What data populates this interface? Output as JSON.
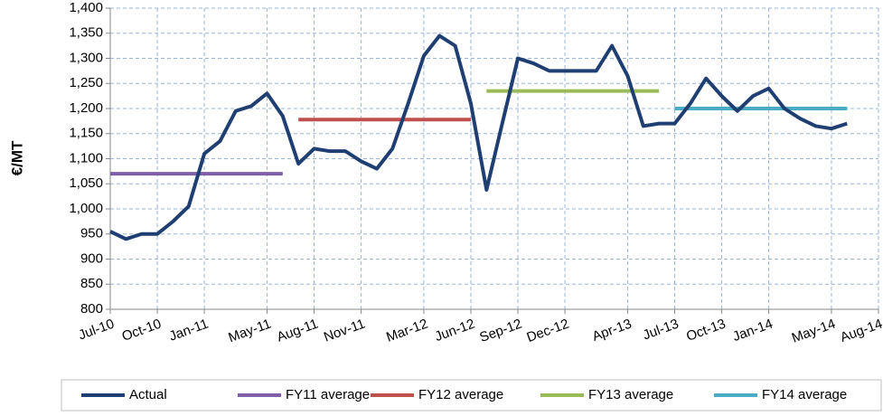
{
  "chart_data": {
    "type": "line",
    "y_label": "€/MT",
    "x": [
      "Jul-10",
      "Aug-10",
      "Sep-10",
      "Oct-10",
      "Nov-10",
      "Dec-10",
      "Jan-11",
      "Feb-11",
      "Mar-11",
      "Apr-11",
      "May-11",
      "Jun-11",
      "Jul-11",
      "Aug-11",
      "Sep-11",
      "Oct-11",
      "Nov-11",
      "Dec-11",
      "Jan-12",
      "Feb-12",
      "Mar-12",
      "Apr-12",
      "May-12",
      "Jun-12",
      "Jul-12",
      "Aug-12",
      "Sep-12",
      "Oct-12",
      "Nov-12",
      "Dec-12",
      "Jan-13",
      "Feb-13",
      "Mar-13",
      "Apr-13",
      "May-13",
      "Jun-13",
      "Jul-13",
      "Aug-13",
      "Sep-13",
      "Oct-13",
      "Nov-13",
      "Dec-13",
      "Jan-14",
      "Feb-14",
      "Mar-14",
      "Apr-14",
      "May-14",
      "Jun-14"
    ],
    "series": [
      {
        "name": "Actual",
        "color": "#1f3f73",
        "values": [
          955,
          940,
          950,
          950,
          975,
          1005,
          1110,
          1135,
          1195,
          1205,
          1230,
          1185,
          1090,
          1120,
          1115,
          1115,
          1095,
          1080,
          1120,
          1210,
          1305,
          1345,
          1325,
          1210,
          1038,
          1170,
          1300,
          1290,
          1275,
          1275,
          1275,
          1275,
          1325,
          1265,
          1165,
          1170,
          1170,
          1210,
          1260,
          1225,
          1195,
          1225,
          1240,
          1200,
          1180,
          1165,
          1160,
          1170
        ]
      },
      {
        "name": "FY11 average",
        "color": "#7f5fa8",
        "x": [
          "Jul-10",
          "Jun-11"
        ],
        "values": [
          1070,
          1070
        ]
      },
      {
        "name": "FY12 average",
        "color": "#c0504d",
        "x": [
          "Jul-11",
          "Jun-12"
        ],
        "values": [
          1178,
          1178
        ]
      },
      {
        "name": "FY13 average",
        "color": "#9bbb59",
        "x": [
          "Jul-12",
          "Jun-13"
        ],
        "values": [
          1235,
          1235
        ]
      },
      {
        "name": "FY14 average",
        "color": "#4bacc6",
        "x": [
          "Jul-13",
          "Jun-14"
        ],
        "values": [
          1200,
          1200
        ]
      }
    ],
    "ylim": [
      800,
      1400
    ],
    "yticks": [
      800,
      850,
      900,
      950,
      {
        "value": 1000,
        "label": "1,000"
      },
      {
        "value": 1050,
        "label": "1,050"
      },
      {
        "value": 1100,
        "label": "1,100"
      },
      {
        "value": 1150,
        "label": "1,150"
      },
      {
        "value": 1200,
        "label": "1,200"
      },
      {
        "value": 1250,
        "label": "1,250"
      },
      {
        "value": 1300,
        "label": "1,300"
      },
      {
        "value": 1350,
        "label": "1,350"
      },
      {
        "value": 1400,
        "label": "1,400"
      }
    ],
    "xlim": [
      "Jul-10",
      "Aug-14"
    ],
    "xticks": [
      "Jul-10",
      "Oct-10",
      "Jan-11",
      "May-11",
      "Aug-11",
      "Nov-11",
      "Mar-12",
      "Jun-12",
      "Sep-12",
      "Dec-12",
      "Apr-13",
      "Jul-13",
      "Oct-13",
      "Jan-14",
      "May-14",
      "Aug-14"
    ],
    "grid": true,
    "legend": "bottom"
  }
}
